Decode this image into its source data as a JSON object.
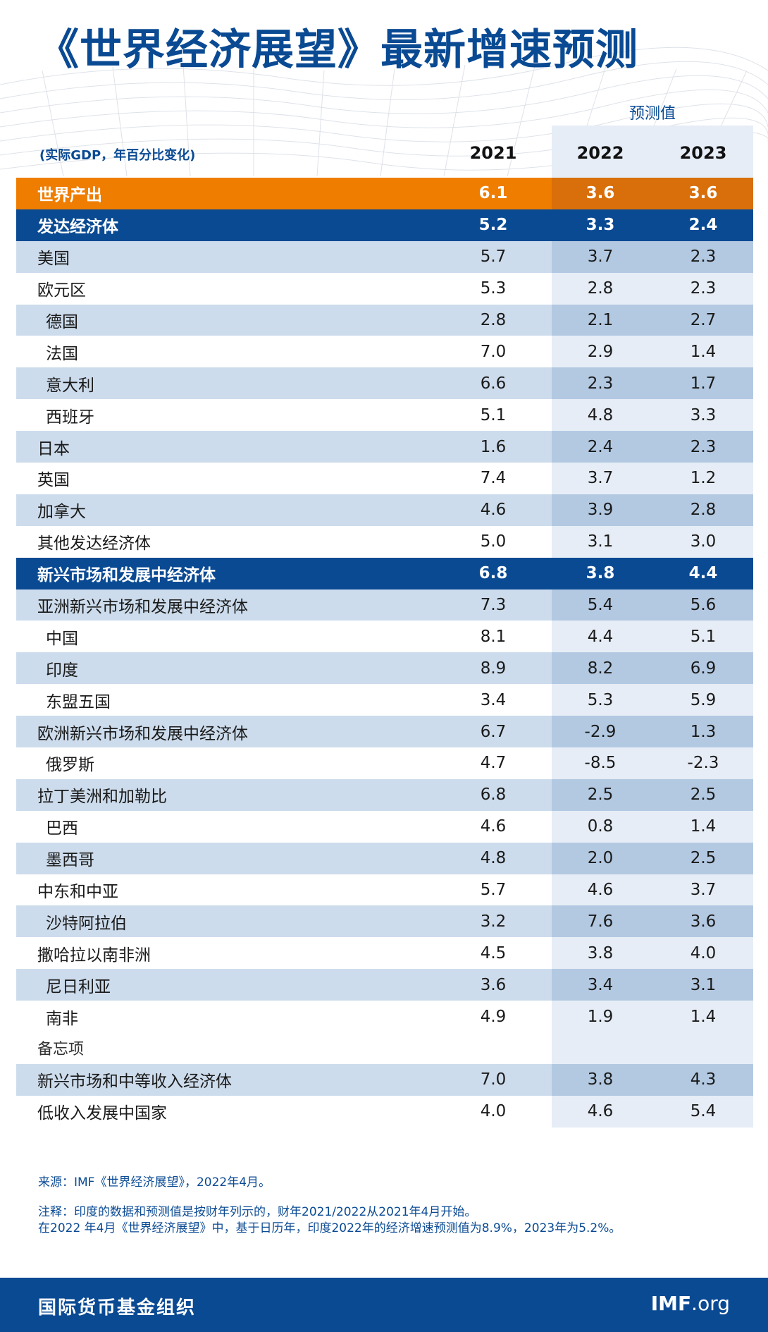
{
  "title": "《世界经济展望》最新增速预测",
  "unit_note": "(实际GDP，年百分比变化)",
  "forecast_label": "预测值",
  "years": [
    "2021",
    "2022",
    "2023"
  ],
  "rows": [
    {
      "label": "世界产出",
      "v": [
        "6.1",
        "3.6",
        "3.6"
      ],
      "style": "world",
      "indent": false
    },
    {
      "label": "发达经济体",
      "v": [
        "5.2",
        "3.3",
        "2.4"
      ],
      "style": "group",
      "indent": false
    },
    {
      "label": "美国",
      "v": [
        "5.7",
        "3.7",
        "2.3"
      ],
      "style": "band",
      "indent": false
    },
    {
      "label": "欧元区",
      "v": [
        "5.3",
        "2.8",
        "2.3"
      ],
      "style": "plain",
      "indent": false
    },
    {
      "label": "德国",
      "v": [
        "2.8",
        "2.1",
        "2.7"
      ],
      "style": "band",
      "indent": true
    },
    {
      "label": "法国",
      "v": [
        "7.0",
        "2.9",
        "1.4"
      ],
      "style": "plain",
      "indent": true
    },
    {
      "label": "意大利",
      "v": [
        "6.6",
        "2.3",
        "1.7"
      ],
      "style": "band",
      "indent": true
    },
    {
      "label": "西班牙",
      "v": [
        "5.1",
        "4.8",
        "3.3"
      ],
      "style": "plain",
      "indent": true
    },
    {
      "label": "日本",
      "v": [
        "1.6",
        "2.4",
        "2.3"
      ],
      "style": "band",
      "indent": false
    },
    {
      "label": "英国",
      "v": [
        "7.4",
        "3.7",
        "1.2"
      ],
      "style": "plain",
      "indent": false
    },
    {
      "label": "加拿大",
      "v": [
        "4.6",
        "3.9",
        "2.8"
      ],
      "style": "band",
      "indent": false
    },
    {
      "label": "其他发达经济体",
      "v": [
        "5.0",
        "3.1",
        "3.0"
      ],
      "style": "plain",
      "indent": false
    },
    {
      "label": "新兴市场和发展中经济体",
      "v": [
        "6.8",
        "3.8",
        "4.4"
      ],
      "style": "group",
      "indent": false
    },
    {
      "label": "亚洲新兴市场和发展中经济体",
      "v": [
        "7.3",
        "5.4",
        "5.6"
      ],
      "style": "band",
      "indent": false
    },
    {
      "label": "中国",
      "v": [
        "8.1",
        "4.4",
        "5.1"
      ],
      "style": "plain",
      "indent": true
    },
    {
      "label": "印度",
      "v": [
        "8.9",
        "8.2",
        "6.9"
      ],
      "style": "band",
      "indent": true
    },
    {
      "label": "东盟五国",
      "v": [
        "3.4",
        "5.3",
        "5.9"
      ],
      "style": "plain",
      "indent": true
    },
    {
      "label": "欧洲新兴市场和发展中经济体",
      "v": [
        "6.7",
        "-2.9",
        "1.3"
      ],
      "style": "band",
      "indent": false
    },
    {
      "label": "俄罗斯",
      "v": [
        "4.7",
        "-8.5",
        "-2.3"
      ],
      "style": "plain",
      "indent": true
    },
    {
      "label": "拉丁美洲和加勒比",
      "v": [
        "6.8",
        "2.5",
        "2.5"
      ],
      "style": "band",
      "indent": false
    },
    {
      "label": "巴西",
      "v": [
        "4.6",
        "0.8",
        "1.4"
      ],
      "style": "plain",
      "indent": true
    },
    {
      "label": "墨西哥",
      "v": [
        "4.8",
        "2.0",
        "2.5"
      ],
      "style": "band",
      "indent": true
    },
    {
      "label": "中东和中亚",
      "v": [
        "5.7",
        "4.6",
        "3.7"
      ],
      "style": "plain",
      "indent": false
    },
    {
      "label": "沙特阿拉伯",
      "v": [
        "3.2",
        "7.6",
        "3.6"
      ],
      "style": "band",
      "indent": true
    },
    {
      "label": "撒哈拉以南非洲",
      "v": [
        "4.5",
        "3.8",
        "4.0"
      ],
      "style": "plain",
      "indent": false
    },
    {
      "label": "尼日利亚",
      "v": [
        "3.6",
        "3.4",
        "3.1"
      ],
      "style": "band",
      "indent": true
    },
    {
      "label": "南非",
      "v": [
        "4.9",
        "1.9",
        "1.4"
      ],
      "style": "plain",
      "indent": true
    },
    {
      "label": "备忘项",
      "v": [
        "",
        "",
        ""
      ],
      "style": "memo",
      "indent": false
    },
    {
      "label": "新兴市场和中等收入经济体",
      "v": [
        "7.0",
        "3.8",
        "4.3"
      ],
      "style": "band",
      "indent": false
    },
    {
      "label": "低收入发展中国家",
      "v": [
        "4.0",
        "4.6",
        "5.4"
      ],
      "style": "plain",
      "indent": false
    }
  ],
  "source": "来源：IMF《世界经济展望》，2022年4月。",
  "notes": [
    "注释：印度的数据和预测值是按财年列示的，财年2021/2022从2021年4月开始。",
    "在2022 年4月《世界经济展望》中，基于日历年，印度2022年的经济增速预测值为8.9%，2023年为5.2%。"
  ],
  "footer": {
    "org": "国际货币基金组织",
    "logo_bold": "IMF",
    "logo_rest": ".org"
  },
  "colors": {
    "brand_blue": "#0a4a93",
    "world_orange": "#ef7d00",
    "band_light": "#cddcec",
    "forecast_shade": "#e6edf6"
  }
}
